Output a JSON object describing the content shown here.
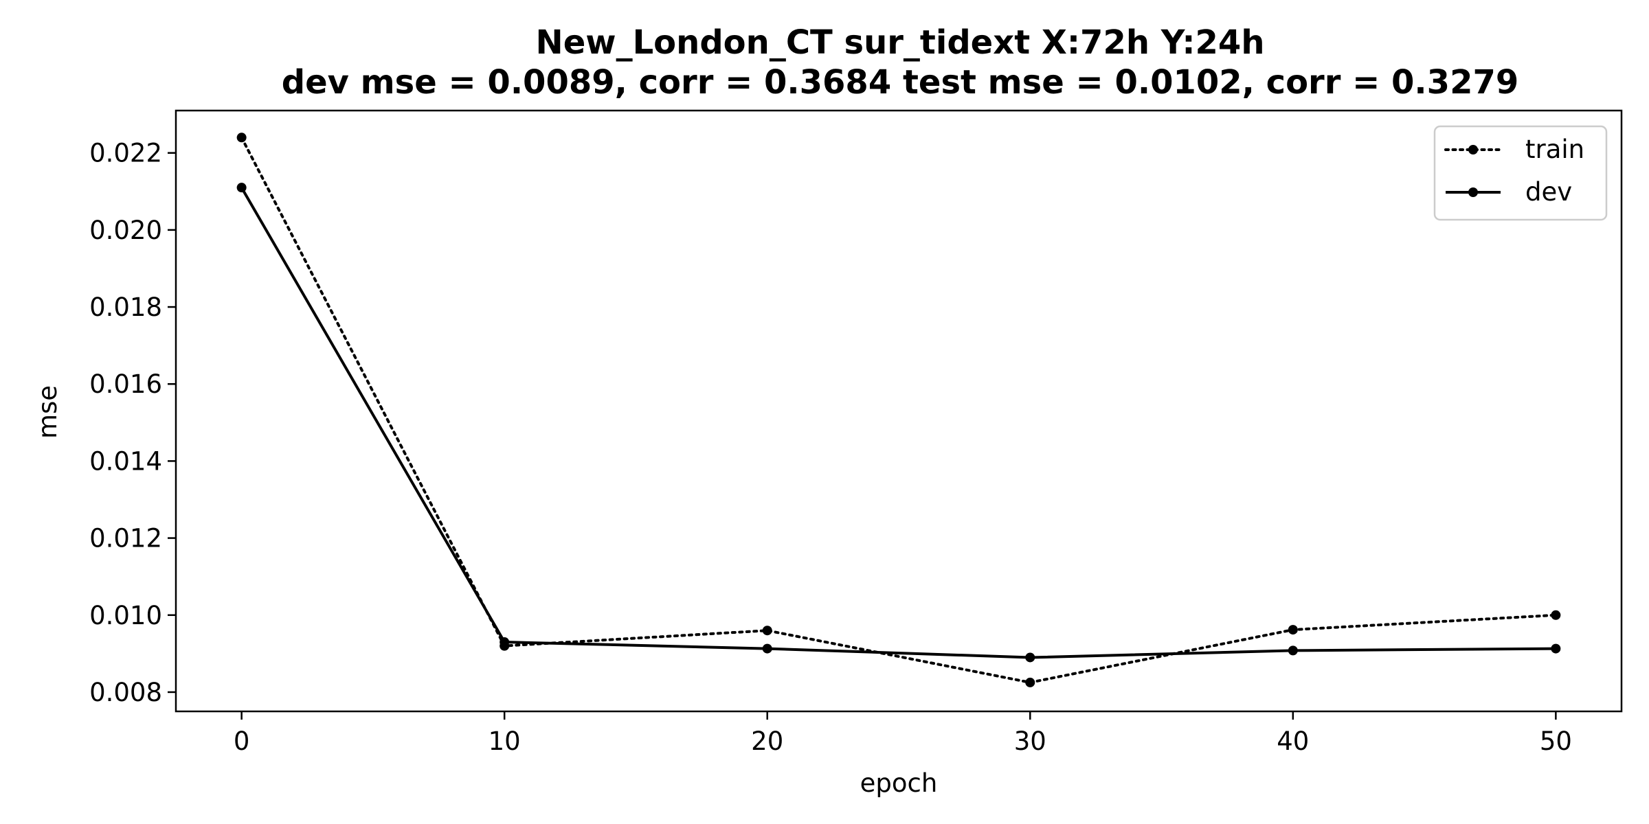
{
  "chart_data": {
    "type": "line",
    "title_line1": "New_London_CT   sur_tidext   X:72h   Y:24h",
    "title_line2": "dev mse = 0.0089, corr = 0.3684   test mse = 0.0102, corr = 0.3279",
    "xlabel": "epoch",
    "ylabel": "mse",
    "x": [
      0,
      10,
      20,
      30,
      40,
      50
    ],
    "xticks": [
      "0",
      "10",
      "20",
      "30",
      "40",
      "50"
    ],
    "xlim": [
      -2.5,
      52.5
    ],
    "yticks": [
      "0.008",
      "0.010",
      "0.012",
      "0.014",
      "0.016",
      "0.018",
      "0.020",
      "0.022"
    ],
    "ylim": [
      0.0075,
      0.0231
    ],
    "grid": false,
    "legend_position": "top-right",
    "series": [
      {
        "name": "train",
        "style": "dotted",
        "color": "#000000",
        "values": [
          0.0224,
          0.0092,
          0.0096,
          0.00825,
          0.00962,
          0.01
        ]
      },
      {
        "name": "dev",
        "style": "solid",
        "color": "#000000",
        "values": [
          0.0211,
          0.0093,
          0.00913,
          0.0089,
          0.00908,
          0.00913
        ]
      }
    ]
  }
}
